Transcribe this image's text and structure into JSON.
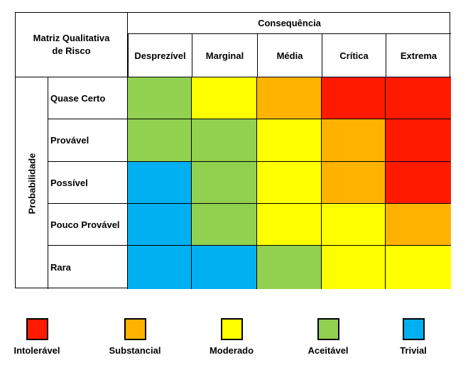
{
  "matrix": {
    "title_line1": "Matriz Qualitativa",
    "title_line2": "de Risco",
    "consequence_header": "Consequência",
    "probability_header": "Probabilidade",
    "columns": [
      "Desprezível",
      "Marginal",
      "Média",
      "Crítica",
      "Extrema"
    ],
    "rows": [
      {
        "label": "Quase Certo",
        "levels": [
          "green",
          "yellow",
          "orange",
          "red",
          "red"
        ]
      },
      {
        "label": "Provável",
        "levels": [
          "green",
          "green",
          "yellow",
          "orange",
          "red"
        ]
      },
      {
        "label": "Possível",
        "levels": [
          "blue",
          "green",
          "yellow",
          "orange",
          "red"
        ]
      },
      {
        "label": "Pouco Provável",
        "levels": [
          "blue",
          "green",
          "yellow",
          "yellow",
          "orange"
        ]
      },
      {
        "label": "Rara",
        "levels": [
          "blue",
          "blue",
          "green",
          "yellow",
          "yellow"
        ]
      }
    ]
  },
  "colors": {
    "red": "#ff1a00",
    "orange": "#ffb300",
    "yellow": "#ffff00",
    "green": "#92d050",
    "blue": "#00b0f0"
  },
  "legend": [
    {
      "label": "Intolerável",
      "color": "red"
    },
    {
      "label": "Substancial",
      "color": "orange"
    },
    {
      "label": "Moderado",
      "color": "yellow"
    },
    {
      "label": "Aceitável",
      "color": "green"
    },
    {
      "label": "Trivial",
      "color": "blue"
    }
  ]
}
